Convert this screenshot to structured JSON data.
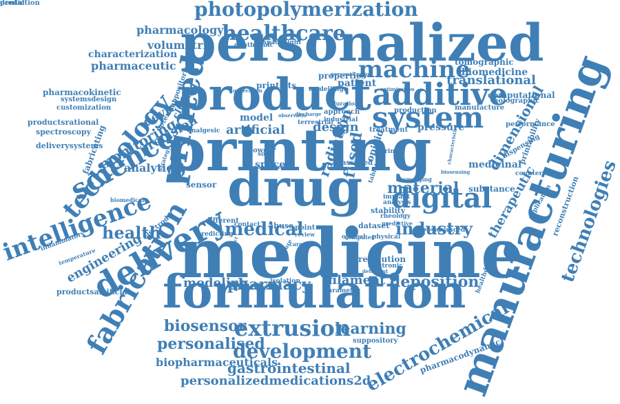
{
  "color": "#3f7fb6",
  "words": [
    {
      "text": "printing",
      "rot": 0
    },
    {
      "text": "medicine",
      "rot": 0
    },
    {
      "text": "personalized",
      "rot": 0
    },
    {
      "text": "manufacturing",
      "rot": -70
    },
    {
      "text": "product",
      "rot": 0
    },
    {
      "text": "formulation",
      "rot": 0
    },
    {
      "text": "drug",
      "rot": 0
    },
    {
      "text": "delivery",
      "rot": -30
    },
    {
      "text": "printed",
      "rot": -80
    },
    {
      "text": "fabrication",
      "rot": -60
    },
    {
      "text": "technology",
      "rot": -50
    },
    {
      "text": "additive",
      "rot": 0
    },
    {
      "text": "system",
      "rot": 0
    },
    {
      "text": "digital",
      "rot": 0
    },
    {
      "text": "science",
      "rot": -30
    },
    {
      "text": "intelligence",
      "rot": -20
    },
    {
      "text": "healthcare",
      "rot": 0
    },
    {
      "text": "photopolymerization",
      "rot": 0
    },
    {
      "text": "machine",
      "rot": 0
    },
    {
      "text": "extrusion",
      "rot": 0
    },
    {
      "text": "development",
      "rot": 0
    },
    {
      "text": "electrochemical",
      "rot": -30
    },
    {
      "text": "technologies",
      "rot": -70
    },
    {
      "text": "medical",
      "rot": 0
    },
    {
      "text": "biosensor",
      "rot": 0
    },
    {
      "text": "personalised",
      "rot": 0
    },
    {
      "text": "learning",
      "rot": 0
    },
    {
      "text": "gastrointestinal",
      "rot": 0
    },
    {
      "text": "personalizedmedications2d",
      "rot": 0
    },
    {
      "text": "health",
      "rot": 0
    },
    {
      "text": "material",
      "rot": 0
    },
    {
      "text": "industry",
      "rot": 0
    },
    {
      "text": "deposition",
      "rot": 0
    },
    {
      "text": "pharmacy",
      "rot": 0
    },
    {
      "text": "modeling",
      "rot": 0
    },
    {
      "text": "filament",
      "rot": 0
    },
    {
      "text": "engineering",
      "rot": -30
    },
    {
      "text": "pharmacology",
      "rot": 0
    },
    {
      "text": "volumetric",
      "rot": 0
    },
    {
      "text": "characterization",
      "rot": 0
    },
    {
      "text": "pharmaceutic",
      "rot": 0
    },
    {
      "text": "translational",
      "rot": 0
    },
    {
      "text": "tomographic",
      "rot": 0
    },
    {
      "text": "biomedicine",
      "rot": 0
    },
    {
      "text": "dimensional",
      "rot": -60
    },
    {
      "text": "therapeutic",
      "rot": -60
    },
    {
      "text": "design",
      "rot": 0
    },
    {
      "text": "artificial",
      "rot": 0
    },
    {
      "text": "model",
      "rot": 0
    },
    {
      "text": "monitoring",
      "rot": -30
    },
    {
      "text": "precision",
      "rot": -30
    },
    {
      "text": "device",
      "rot": -30
    },
    {
      "text": "analytical",
      "rot": 0
    },
    {
      "text": "fabricating",
      "rot": -70
    },
    {
      "text": "medicinal",
      "rot": 0
    },
    {
      "text": "pressure",
      "rot": 0
    },
    {
      "text": "biopharmaceuticals",
      "rot": 0
    },
    {
      "text": "pharmacodynamic",
      "rot": -20
    },
    {
      "text": "pharmacokinetic",
      "rot": 0
    },
    {
      "text": "systemsdesign",
      "rot": 0
    },
    {
      "text": "customization",
      "rot": 0
    },
    {
      "text": "productsrational",
      "rot": 0
    },
    {
      "text": "spectroscopy",
      "rot": 0
    },
    {
      "text": "deliverysystems",
      "rot": 0
    },
    {
      "text": "productsartificial",
      "rot": 0
    },
    {
      "text": "inflammatory",
      "rot": -20
    },
    {
      "text": "biomedical",
      "rot": 0
    },
    {
      "text": "temperature",
      "rot": -20
    },
    {
      "text": "electrode",
      "rot": -40
    },
    {
      "text": "suppositories",
      "rot": -70
    },
    {
      "text": "clinical",
      "rot": -60
    },
    {
      "text": "computational",
      "rot": 0
    },
    {
      "text": "holographic",
      "rot": 0
    },
    {
      "text": "manufacture",
      "rot": 0
    },
    {
      "text": "performance",
      "rot": 0
    },
    {
      "text": "printability",
      "rot": -70
    },
    {
      "text": "dispensing",
      "rot": -30
    },
    {
      "text": "counterfeit",
      "rot": 0
    },
    {
      "text": "substance",
      "rot": 0
    },
    {
      "text": "reconstruction",
      "rot": -70
    },
    {
      "text": "application",
      "rot": -60
    },
    {
      "text": "healthdesktop",
      "rot": -70
    },
    {
      "text": "suppository",
      "rot": 0
    },
    {
      "text": "fused",
      "rot": -80
    },
    {
      "text": "printlets",
      "rot": 0
    },
    {
      "text": "properties",
      "rot": 0
    },
    {
      "text": "patient",
      "rot": 0
    },
    {
      "text": "production",
      "rot": 0
    },
    {
      "text": "treatment",
      "rot": 0
    },
    {
      "text": "industrial",
      "rot": 0
    },
    {
      "text": "terrestrial",
      "rot": 0
    },
    {
      "text": "sensor",
      "rot": 0
    },
    {
      "text": "space",
      "rot": 0
    },
    {
      "text": "radiation",
      "rot": -70
    },
    {
      "text": "abuse",
      "rot": 0
    },
    {
      "text": "contact",
      "rot": 0
    },
    {
      "text": "different",
      "rot": 0
    },
    {
      "text": "predicting",
      "rot": 0
    },
    {
      "text": "dataset",
      "rot": 0
    },
    {
      "text": "advanced",
      "rot": 0
    },
    {
      "text": "revolution",
      "rot": 0
    },
    {
      "text": "electronic",
      "rot": 0
    },
    {
      "text": "parameter",
      "rot": 0
    },
    {
      "text": "stability",
      "rot": 0
    },
    {
      "text": "analysis",
      "rot": 0
    },
    {
      "text": "physical",
      "rot": 0
    },
    {
      "text": "optical",
      "rot": 0
    },
    {
      "text": "ophthalmic",
      "rot": 0
    },
    {
      "text": "spaceflight",
      "rot": 0
    },
    {
      "text": "modelling",
      "rot": 0
    },
    {
      "text": "approach",
      "rot": 0
    },
    {
      "text": "potential",
      "rot": -60
    },
    {
      "text": "analgesic",
      "rot": 0
    },
    {
      "text": "solid",
      "rot": 0
    },
    {
      "text": "powder",
      "rot": 0
    },
    {
      "text": "opioid",
      "rot": -70
    },
    {
      "text": "rheology",
      "rot": 0
    },
    {
      "text": "implant",
      "rot": 0
    },
    {
      "text": "point",
      "rot": 0
    },
    {
      "text": "review",
      "rot": 0
    },
    {
      "text": "care",
      "rot": 0
    },
    {
      "text": "paracetamol",
      "rot": 0
    },
    {
      "text": "isolation",
      "rot": 0
    },
    {
      "text": "personalization",
      "rot": 0
    },
    {
      "text": "optimization",
      "rot": 0
    },
    {
      "text": "syringe",
      "rot": 0
    },
    {
      "text": "tablet",
      "rot": -70
    },
    {
      "text": "duration",
      "rot": 0
    },
    {
      "text": "generation",
      "rot": 0
    },
    {
      "text": "observatio",
      "rot": 0
    },
    {
      "text": "discharge",
      "rot": 0
    },
    {
      "text": "emerging",
      "rot": 0
    },
    {
      "text": "characteristic",
      "rot": -80
    },
    {
      "text": "predictive",
      "rot": 0
    },
    {
      "text": "disease",
      "rot": 0
    },
    {
      "text": "assisted",
      "rot": 0
    },
    {
      "text": "strategy",
      "rot": -70
    },
    {
      "text": "computer",
      "rot": 0
    },
    {
      "text": "future",
      "rot": -60
    },
    {
      "text": "direct",
      "rot": -70
    },
    {
      "text": "deterrent",
      "rot": 0
    },
    {
      "text": "biosensing",
      "rot": 0
    },
    {
      "text": "connected",
      "rot": 0
    },
    {
      "text": "prediction",
      "rot": 0
    },
    {
      "text": "dental",
      "rot": 0
    }
  ]
}
